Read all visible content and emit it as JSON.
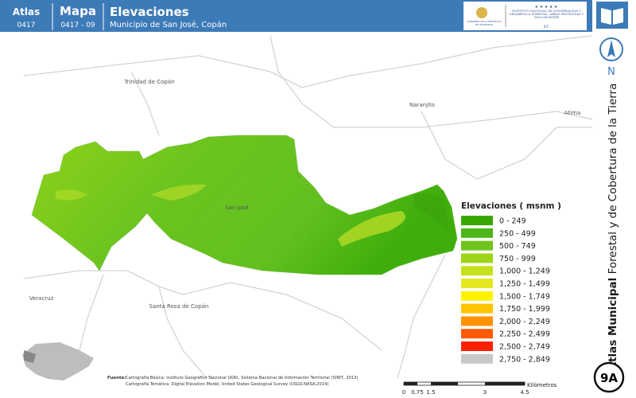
{
  "header": {
    "atlas_label": "Atlas",
    "atlas_code": "0417",
    "map_label": "Mapa",
    "map_code": "0417 - 09",
    "title": "Elevaciones",
    "subtitle": "Municipio de San José, Copán",
    "logo_left": "GOBIERNO DE LA REPÚBLICA DE HONDURAS",
    "logo_right": "INSTITUTO NACIONAL DE CONSERVACIÓN Y DESARROLLO FORESTAL, ÁREAS PROTEGIDAS Y VIDA SILVESTRE",
    "logo_right_short": "ICF"
  },
  "sidebar": {
    "north": "N",
    "title_bold": "Atlas Municipal",
    "title_rest": "Forestal y de Cobertura de la Tierra",
    "badge": "9A"
  },
  "places": [
    "Trinidad de Copán",
    "Naranjito",
    "Atima",
    "San José",
    "Veracruz",
    "Santa Rosa de Copán"
  ],
  "legend": {
    "title": "Elevaciones ( msnm )",
    "items": [
      {
        "label": "0 - 249",
        "color": "#38a800"
      },
      {
        "label": "250 - 499",
        "color": "#4cb51a"
      },
      {
        "label": "500 - 749",
        "color": "#70c41e"
      },
      {
        "label": "750 - 999",
        "color": "#9dd417"
      },
      {
        "label": "1,000 - 1,249",
        "color": "#c5e01c"
      },
      {
        "label": "1,250 - 1,499",
        "color": "#e4e81e"
      },
      {
        "label": "1,500 - 1,749",
        "color": "#fff200"
      },
      {
        "label": "1,750 - 1,999",
        "color": "#ffc400"
      },
      {
        "label": "2,000 - 2,249",
        "color": "#ff9200"
      },
      {
        "label": "2,250 - 2,499",
        "color": "#ff5a00"
      },
      {
        "label": "2,500 - 2,749",
        "color": "#ff2000"
      },
      {
        "label": "2,750 - 2,849",
        "color": "#c8c8c8"
      }
    ]
  },
  "scale": {
    "ticks": [
      "0",
      "0.75",
      "1.5",
      "3",
      "4.5"
    ],
    "unit": "Kilómetros"
  },
  "source": {
    "label": "Fuente:",
    "lines": [
      "Cartografía Básica: Instituto Geográfico Nacional (IGN), Sistema Nacional de Información Territorial (SINIT, 2013)",
      "Cartografía Temática: Digital Elevation Model, United States Geological Survey (USGS-NASA,2014)"
    ]
  }
}
